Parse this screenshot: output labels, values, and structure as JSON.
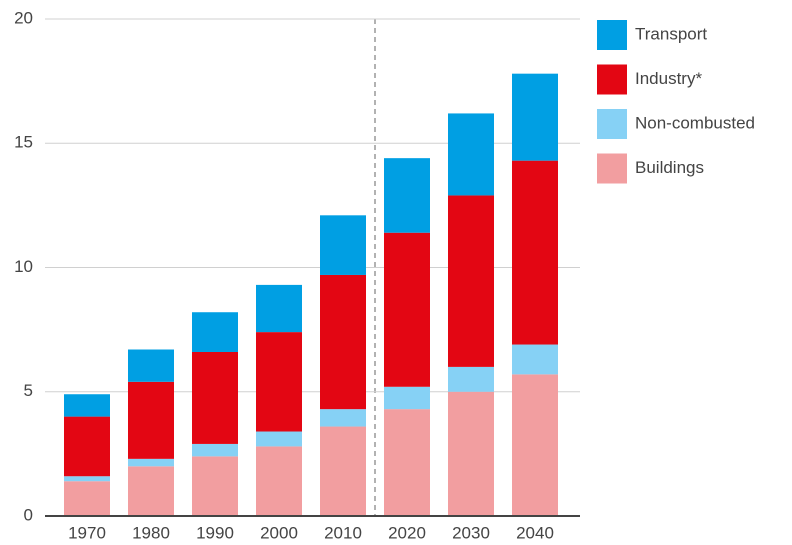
{
  "chart_data": {
    "type": "stacked-bar",
    "categories": [
      "1970",
      "1980",
      "1990",
      "2000",
      "2010",
      "2020",
      "2030",
      "2040"
    ],
    "series": [
      {
        "name": "Transport",
        "color": "#009fe3",
        "values": [
          0.9,
          1.3,
          1.6,
          1.9,
          2.4,
          3.0,
          3.3,
          3.5
        ]
      },
      {
        "name": "Industry*",
        "color": "#e30613",
        "values": [
          2.4,
          3.1,
          3.7,
          4.0,
          5.4,
          6.2,
          6.9,
          7.4
        ]
      },
      {
        "name": "Non-combusted",
        "color": "#86d1f5",
        "values": [
          0.2,
          0.3,
          0.5,
          0.6,
          0.7,
          0.9,
          1.0,
          1.2
        ]
      },
      {
        "name": "Buildings",
        "color": "#f29ea0",
        "values": [
          1.4,
          2.0,
          2.4,
          2.8,
          3.6,
          4.3,
          5.0,
          5.7
        ]
      }
    ],
    "ylim": [
      0,
      20
    ],
    "yticks": [
      0,
      5,
      10,
      15,
      20
    ],
    "grid": true,
    "legend": "right"
  }
}
